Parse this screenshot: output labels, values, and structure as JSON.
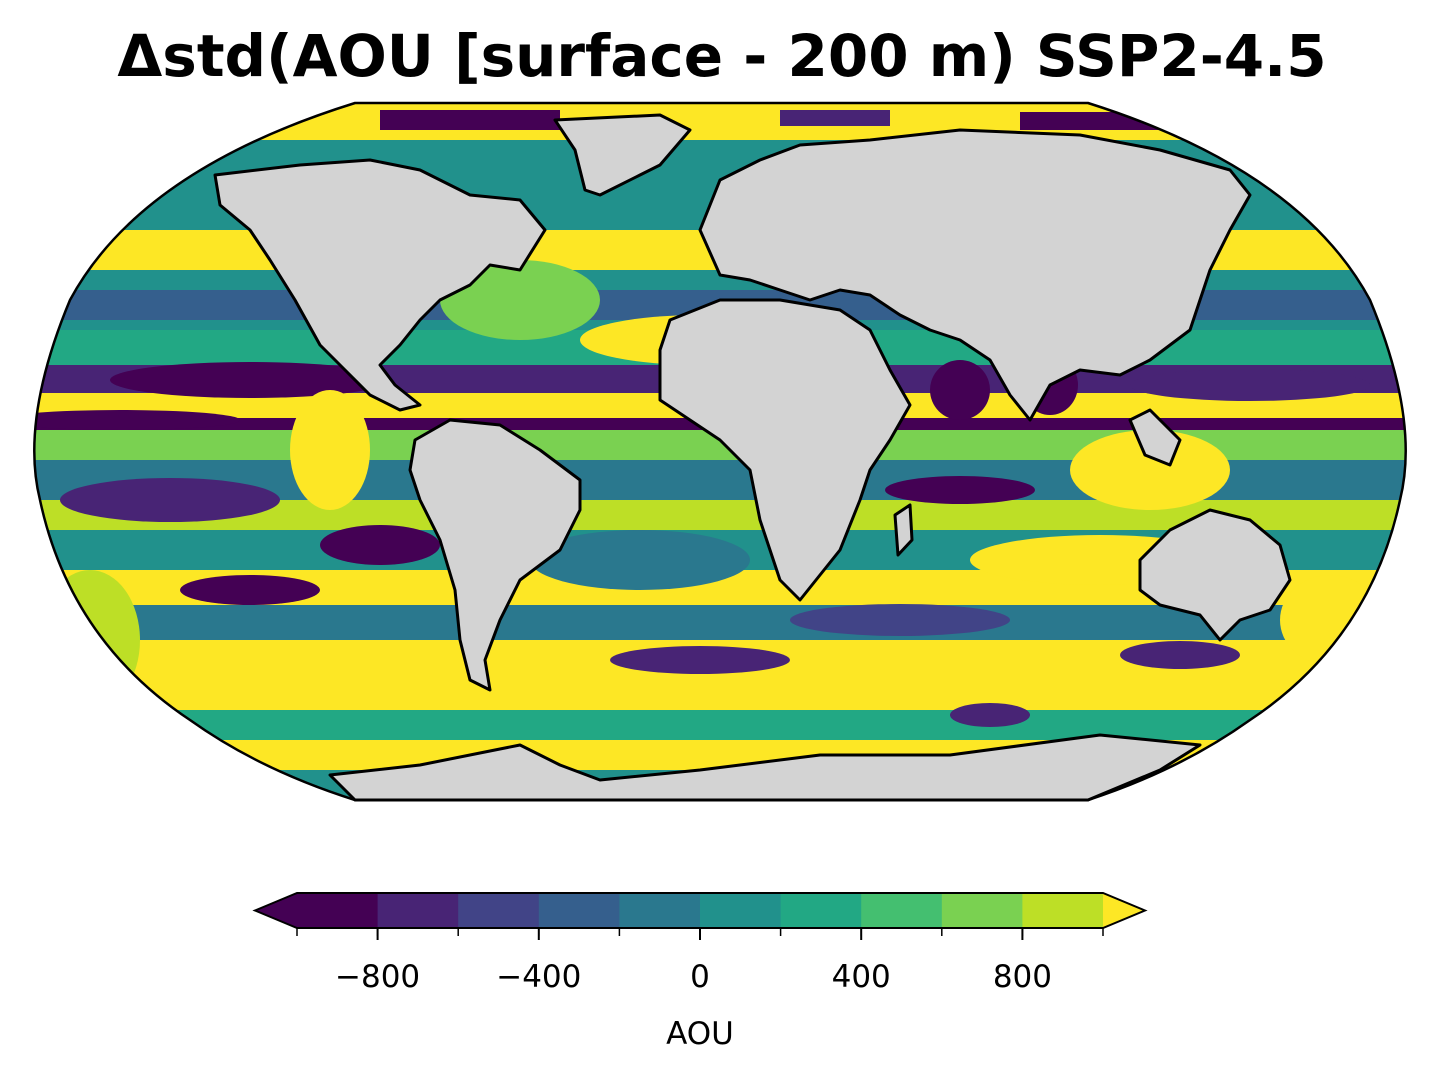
{
  "title": "Δstd(AOU [surface - 200 m) SSP2-4.5",
  "map": {
    "projection": "Robinson",
    "land_color": "#d3d3d3",
    "coast_color": "#000000",
    "ocean_field": "AOU std change"
  },
  "colorbar": {
    "label": "AOU",
    "vmin": -1000,
    "vmax": 1000,
    "step": 200,
    "extend": "both",
    "tick_values": [
      -800,
      -400,
      0,
      400,
      800
    ],
    "tick_labels": [
      "−800",
      "−400",
      "0",
      "400",
      "800"
    ],
    "colors": [
      "#440154",
      "#482475",
      "#414487",
      "#355f8d",
      "#2a788e",
      "#21918c",
      "#22a884",
      "#44bf70",
      "#7ad151",
      "#bddf26",
      "#fde725"
    ],
    "under_color": "#440154",
    "over_color": "#fde725"
  }
}
